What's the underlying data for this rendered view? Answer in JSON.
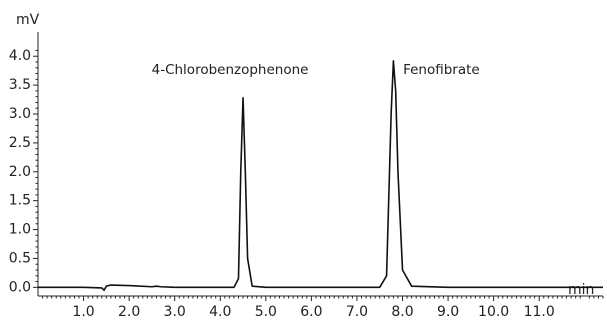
{
  "chart_data": {
    "type": "line",
    "title": "",
    "xlabel": "min",
    "ylabel": "mV",
    "xlim": [
      0,
      12.4
    ],
    "ylim": [
      -0.15,
      4.35
    ],
    "x_ticks": [
      "1.0",
      "2.0",
      "3.0",
      "4.0",
      "5.0",
      "6.0",
      "7.0",
      "8.0",
      "9.0",
      "10.0",
      "11.0"
    ],
    "y_ticks": [
      "0.0",
      "0.5",
      "1.0",
      "1.5",
      "2.0",
      "2.5",
      "3.0",
      "3.5",
      "4.0"
    ],
    "grid": false,
    "legend": "none",
    "series": [
      {
        "baseline": 0.0,
        "peaks": [
          {
            "x": 4.5,
            "y": 3.28,
            "label": "4-Chlorobenzophenone"
          },
          {
            "x": 7.8,
            "y": 3.92,
            "label": "Fenofibrate"
          }
        ],
        "x": [
          0.0,
          1.0,
          1.4,
          1.45,
          1.5,
          1.6,
          2.0,
          2.5,
          2.6,
          2.7,
          3.0,
          4.0,
          4.3,
          4.4,
          4.45,
          4.5,
          4.55,
          4.6,
          4.7,
          5.0,
          6.0,
          7.0,
          7.5,
          7.65,
          7.75,
          7.8,
          7.85,
          7.9,
          8.0,
          8.2,
          9.0,
          10.0,
          11.0,
          12.4
        ],
        "y": [
          0.0,
          0.0,
          -0.01,
          -0.05,
          0.02,
          0.04,
          0.03,
          0.01,
          0.02,
          0.01,
          0.0,
          0.0,
          0.0,
          0.15,
          2.0,
          3.28,
          2.0,
          0.5,
          0.02,
          0.0,
          0.0,
          0.0,
          0.0,
          0.2,
          3.0,
          3.92,
          3.4,
          2.0,
          0.3,
          0.02,
          0.0,
          0.0,
          0.0,
          0.0
        ]
      }
    ]
  }
}
